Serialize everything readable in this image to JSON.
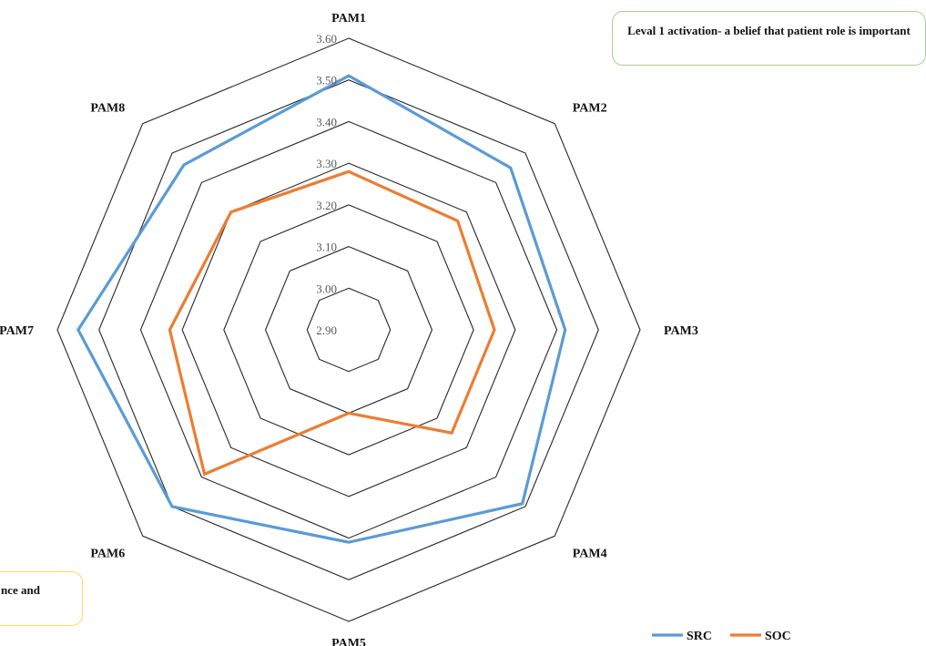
{
  "chart_data": {
    "type": "radar",
    "title": "",
    "categories": [
      "PAM1",
      "PAM2",
      "PAM3",
      "PAM4",
      "PAM5",
      "PAM6",
      "PAM7",
      "PAM8"
    ],
    "ticks": [
      "2.90",
      "3.00",
      "3.10",
      "3.20",
      "3.30",
      "3.40",
      "3.50",
      "3.60"
    ],
    "range": [
      2.9,
      3.6
    ],
    "grid": true,
    "legend_position": "bottom-right",
    "series": [
      {
        "name": "SRC",
        "color": "#5b9bd5",
        "values": [
          3.51,
          3.45,
          3.42,
          3.49,
          3.41,
          3.5,
          3.55,
          3.46
        ]
      },
      {
        "name": "SOC",
        "color": "#ed7d31",
        "values": [
          3.28,
          3.27,
          3.25,
          3.25,
          3.1,
          3.39,
          3.33,
          3.3
        ]
      }
    ]
  },
  "notes": {
    "level1": "Leval 1 activation- a belief that patient role is important",
    "level2": "nce and"
  }
}
